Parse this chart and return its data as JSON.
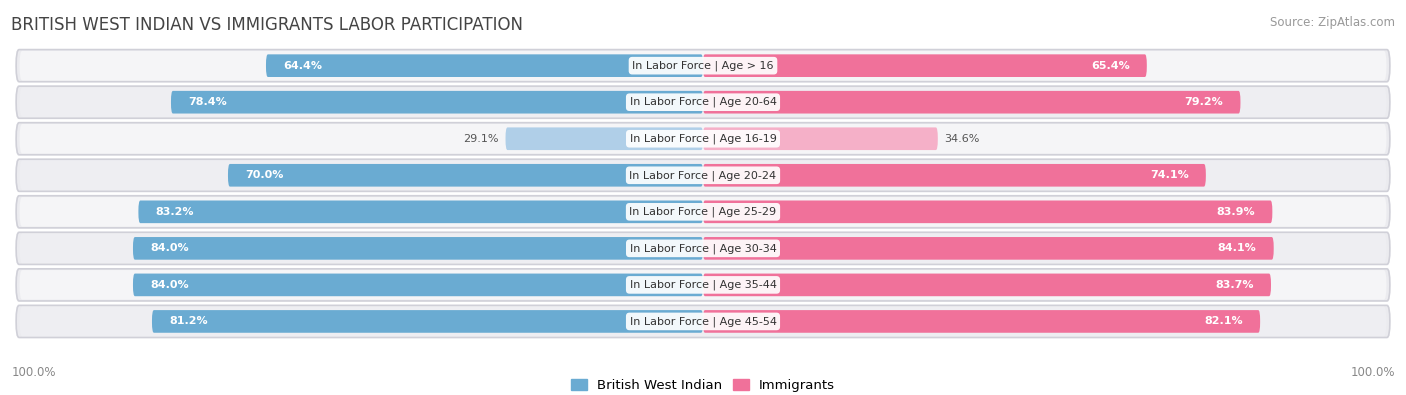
{
  "title": "BRITISH WEST INDIAN VS IMMIGRANTS LABOR PARTICIPATION",
  "source": "Source: ZipAtlas.com",
  "categories": [
    "In Labor Force | Age > 16",
    "In Labor Force | Age 20-64",
    "In Labor Force | Age 16-19",
    "In Labor Force | Age 20-24",
    "In Labor Force | Age 25-29",
    "In Labor Force | Age 30-34",
    "In Labor Force | Age 35-44",
    "In Labor Force | Age 45-54"
  ],
  "bwi_values": [
    64.4,
    78.4,
    29.1,
    70.0,
    83.2,
    84.0,
    84.0,
    81.2
  ],
  "imm_values": [
    65.4,
    79.2,
    34.6,
    74.1,
    83.9,
    84.1,
    83.7,
    82.1
  ],
  "bwi_color": "#6aabd2",
  "bwi_color_light": "#b0cfe8",
  "imm_color": "#f0719a",
  "imm_color_light": "#f5b0c8",
  "row_bg": "#e8e8ec",
  "row_inner_bg_odd": "#f5f5f7",
  "row_inner_bg_even": "#eeeef2",
  "background_color": "#ffffff",
  "max_value": 100.0,
  "label_fontsize": 8.0,
  "title_fontsize": 12,
  "legend_fontsize": 9.5,
  "source_fontsize": 8.5
}
